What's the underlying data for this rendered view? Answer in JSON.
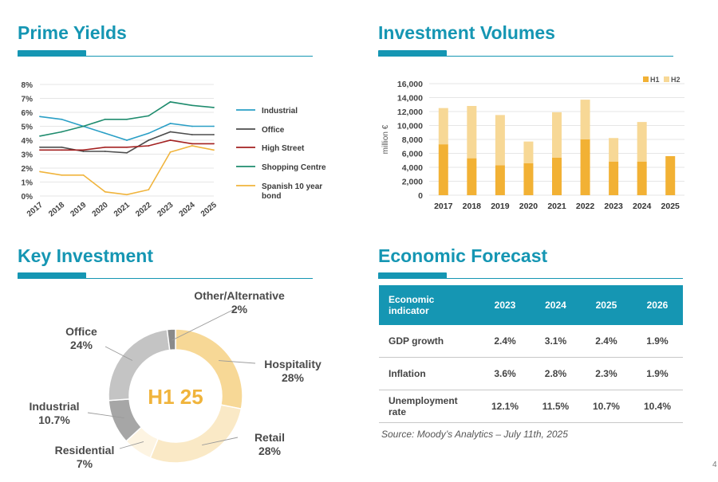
{
  "sections": {
    "prime_yields": "Prime Yields",
    "investment_volumes": "Investment Volumes",
    "key_investment": "Key Investment",
    "economic_forecast": "Economic Forecast"
  },
  "colors": {
    "brand": "#1596b3",
    "industrial": "#2a9fc6",
    "office": "#4d4d4d",
    "high_street": "#a32020",
    "shopping_centre": "#1f8c6e",
    "bond": "#f0b43c",
    "h1": "#f2b134",
    "h2": "#f7d896"
  },
  "chart_data": [
    {
      "type": "line",
      "title": "Prime Yields",
      "x": [
        "2017",
        "2018",
        "2019",
        "2020",
        "2021",
        "2022",
        "2023",
        "2024",
        "2025"
      ],
      "y_ticks": [
        "0%",
        "1%",
        "2%",
        "3%",
        "4%",
        "5%",
        "6%",
        "7%",
        "8%"
      ],
      "ylim": [
        0,
        8
      ],
      "series": [
        {
          "name": "Industrial",
          "values": [
            5.7,
            5.5,
            5.0,
            4.5,
            4.0,
            4.5,
            5.2,
            5.0,
            5.0
          ]
        },
        {
          "name": "Office",
          "values": [
            3.5,
            3.5,
            3.2,
            3.2,
            3.1,
            4.0,
            4.6,
            4.4,
            4.4
          ]
        },
        {
          "name": "High Street",
          "values": [
            3.3,
            3.3,
            3.3,
            3.5,
            3.5,
            3.6,
            4.0,
            3.75,
            3.75
          ]
        },
        {
          "name": "Shopping Centre",
          "values": [
            4.3,
            4.6,
            5.0,
            5.5,
            5.5,
            5.75,
            6.75,
            6.5,
            6.35
          ]
        },
        {
          "name": "Spanish 10 year bond",
          "values": [
            1.75,
            1.5,
            1.5,
            0.3,
            0.1,
            0.45,
            3.15,
            3.6,
            3.3
          ]
        }
      ]
    },
    {
      "type": "bar",
      "title": "Investment Volumes",
      "stacked": true,
      "categories": [
        "2017",
        "2018",
        "2019",
        "2020",
        "2021",
        "2022",
        "2023",
        "2024",
        "2025"
      ],
      "y_ticks": [
        "0",
        "2,000",
        "4,000",
        "6,000",
        "8,000",
        "10,000",
        "12,000",
        "14,000",
        "16,000"
      ],
      "ylim": [
        0,
        16000
      ],
      "ylabel": "million €",
      "series": [
        {
          "name": "H1",
          "values": [
            7300,
            5300,
            4300,
            4600,
            5400,
            8000,
            4800,
            4800,
            5600
          ]
        },
        {
          "name": "H2",
          "values": [
            5200,
            7500,
            7200,
            3100,
            6500,
            5700,
            3400,
            5700,
            0
          ]
        }
      ]
    },
    {
      "type": "pie",
      "title": "Key Investment",
      "center_label": "H1 25",
      "slices": [
        {
          "name": "Hospitality",
          "value_label": "28%",
          "value": 28,
          "color": "#f7d896"
        },
        {
          "name": "Retail",
          "value_label": "28%",
          "value": 28,
          "color": "#fae9c6"
        },
        {
          "name": "Residential",
          "value_label": "7%",
          "value": 7,
          "color": "#fdf4e2"
        },
        {
          "name": "Industrial",
          "value_label": "10.7%",
          "value": 10.7,
          "color": "#a6a6a6"
        },
        {
          "name": "Office",
          "value_label": "24%",
          "value": 24,
          "color": "#c4c4c4"
        },
        {
          "name": "Other/Alternative",
          "value_label": "2%",
          "value": 2,
          "color": "#8a8a8a"
        }
      ]
    },
    {
      "type": "table",
      "title": "Economic Forecast",
      "header": [
        "Economic indicator",
        "2023",
        "2024",
        "2025",
        "2026"
      ],
      "rows": [
        {
          "label": "GDP growth",
          "values": [
            "2.4%",
            "3.1%",
            "2.4%",
            "1.9%"
          ]
        },
        {
          "label": "Inflation",
          "values": [
            "3.6%",
            "2.8%",
            "2.3%",
            "1.9%"
          ]
        },
        {
          "label": "Unemployment rate",
          "values": [
            "12.1%",
            "11.5%",
            "10.7%",
            "10.4%"
          ]
        }
      ],
      "source": "Source: Moody’s Analytics – July 11th, 2025"
    }
  ],
  "page_number": "4"
}
